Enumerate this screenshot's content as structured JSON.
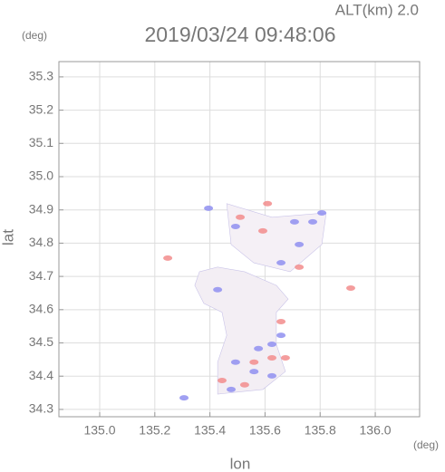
{
  "chart_data": {
    "type": "scatter",
    "title": "2019/03/24 09:48:06",
    "subtitle": "ALT(km) 2.0",
    "x_label": "lon",
    "y_label": "lat",
    "x_unit": "(deg)",
    "y_unit": "(deg)",
    "xlim": [
      134.852,
      136.161
    ],
    "ylim": [
      34.278,
      35.346
    ],
    "xticks": [
      {
        "value": 135.0,
        "label": "135.0"
      },
      135.2,
      135.4,
      135.6,
      135.8,
      {
        "value": 136.0,
        "label": "136.0"
      }
    ],
    "yticks": [
      34.3,
      34.4,
      34.5,
      34.6,
      34.7,
      34.8,
      34.9,
      {
        "value": 35.0,
        "label": "35.0"
      },
      35.1,
      35.2,
      35.3
    ],
    "grid": true,
    "echo_areas": [
      {
        "color": "#f3eef4",
        "x": [
          135.362,
          135.428,
          135.526,
          135.641,
          135.684,
          135.641,
          135.641,
          135.674,
          135.592,
          135.428,
          135.428,
          135.461,
          135.444,
          135.378,
          135.345
        ],
        "y": [
          34.714,
          34.728,
          34.714,
          34.673,
          34.632,
          34.592,
          34.496,
          34.414,
          34.36,
          34.346,
          34.442,
          34.523,
          34.592,
          34.619,
          34.673
        ]
      },
      {
        "color": "#f5f0f6",
        "x": [
          135.461,
          135.625,
          135.822,
          135.806,
          135.691,
          135.559,
          135.477
        ],
        "y": [
          34.919,
          34.878,
          34.891,
          34.796,
          34.714,
          34.741,
          34.796
        ]
      }
    ],
    "series": [
      {
        "color": "#8f8ff0",
        "x": [
          135.395,
          135.493,
          135.707,
          135.773,
          135.806,
          135.428,
          135.625,
          135.576,
          135.658,
          135.56,
          135.493,
          135.625,
          135.306,
          135.724,
          135.658,
          135.477
        ],
        "y": [
          34.905,
          34.85,
          34.864,
          34.864,
          34.891,
          34.66,
          34.496,
          34.483,
          34.523,
          34.414,
          34.442,
          34.401,
          34.335,
          34.796,
          34.741,
          34.36
        ]
      },
      {
        "color": "#f28c8c",
        "x": [
          135.247,
          135.609,
          135.658,
          135.56,
          135.444,
          135.625,
          135.526,
          135.674,
          135.911,
          135.724,
          135.592,
          135.51
        ],
        "y": [
          34.755,
          34.919,
          34.564,
          34.442,
          34.387,
          34.455,
          34.374,
          34.455,
          34.665,
          34.728,
          34.837,
          34.878
        ]
      }
    ]
  }
}
